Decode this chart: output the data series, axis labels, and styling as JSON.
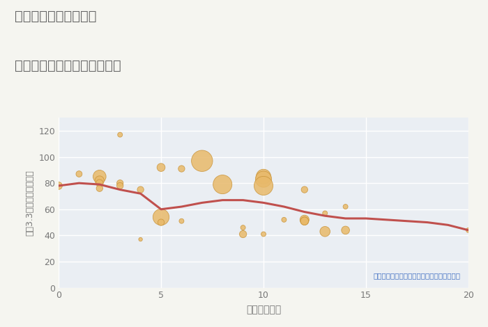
{
  "title_line1": "三重県桑名市城山台の",
  "title_line2": "駅距離別中古マンション価格",
  "xlabel": "駅距離（分）",
  "ylabel": "坪（3.3㎡）単価（万円）",
  "xlim": [
    0,
    20
  ],
  "ylim": [
    0,
    130
  ],
  "yticks": [
    0,
    20,
    40,
    60,
    80,
    100,
    120
  ],
  "xticks": [
    0,
    5,
    10,
    15,
    20
  ],
  "fig_bg_color": "#f5f5f0",
  "plot_bg_color": "#eaeef3",
  "bubble_color": "#e8b96a",
  "bubble_edge_color": "#c9943a",
  "trend_color": "#c0504d",
  "annotation_color": "#4472c4",
  "annotation_text": "円の大きさは、取引のあった物件面積を示す",
  "title_color": "#666666",
  "label_color": "#777777",
  "grid_color": "#ffffff",
  "scatter_x": [
    0,
    1,
    2,
    2,
    2,
    2,
    3,
    3,
    3,
    4,
    4,
    5,
    5,
    5,
    6,
    6,
    7,
    8,
    9,
    9,
    10,
    10,
    10,
    10,
    11,
    12,
    12,
    12,
    12,
    13,
    13,
    14,
    14,
    20
  ],
  "scatter_y": [
    78,
    87,
    85,
    82,
    80,
    76,
    80,
    117,
    78,
    37,
    75,
    92,
    54,
    50,
    91,
    51,
    97,
    79,
    46,
    41,
    85,
    83,
    78,
    41,
    52,
    52,
    51,
    51,
    75,
    43,
    57,
    44,
    62,
    44
  ],
  "scatter_size": [
    60,
    40,
    180,
    90,
    55,
    45,
    45,
    25,
    45,
    15,
    45,
    70,
    280,
    45,
    45,
    25,
    480,
    380,
    25,
    55,
    230,
    280,
    380,
    25,
    25,
    90,
    70,
    70,
    45,
    110,
    25,
    70,
    25,
    25
  ],
  "trend_x": [
    0,
    1,
    2,
    3,
    4,
    5,
    6,
    7,
    8,
    9,
    10,
    11,
    12,
    13,
    14,
    15,
    16,
    17,
    18,
    19,
    20
  ],
  "trend_y": [
    78,
    80,
    79,
    75,
    72,
    60,
    62,
    65,
    67,
    67,
    65,
    62,
    58,
    55,
    53,
    53,
    52,
    51,
    50,
    48,
    44
  ]
}
